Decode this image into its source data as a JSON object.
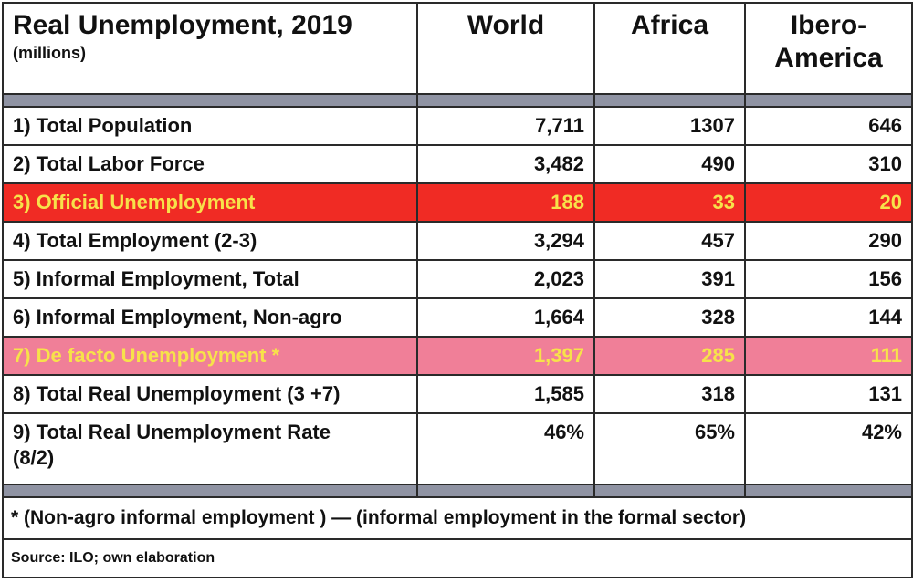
{
  "title": "Real Unemployment, 2019",
  "subtitle": "(millions)",
  "columns": [
    "World",
    "Africa",
    "Ibero-\nAmerica"
  ],
  "rows": [
    {
      "label": "1) Total Population",
      "world": "7,711",
      "africa": "1307",
      "ibero": "646",
      "highlight": "none"
    },
    {
      "label": "2) Total Labor Force",
      "world": "3,482",
      "africa": "490",
      "ibero": "310",
      "highlight": "none"
    },
    {
      "label": "3) Official Unemployment",
      "world": "188",
      "africa": "33",
      "ibero": "20",
      "highlight": "red"
    },
    {
      "label": "4) Total Employment (2-3)",
      "world": "3,294",
      "africa": "457",
      "ibero": "290",
      "highlight": "none"
    },
    {
      "label": "5) Informal Employment, Total",
      "world": "2,023",
      "africa": "391",
      "ibero": "156",
      "highlight": "none"
    },
    {
      "label": "6) Informal Employment, Non-agro",
      "world": "1,664",
      "africa": "328",
      "ibero": "144",
      "highlight": "none"
    },
    {
      "label": "7) De facto Unemployment *",
      "world": "1,397",
      "africa": "285",
      "ibero": "111",
      "highlight": "pink"
    },
    {
      "label": "8) Total Real Unemployment (3 +7)",
      "world": "1,585",
      "africa": "318",
      "ibero": "131",
      "highlight": "none"
    },
    {
      "label": "9) Total Real Unemployment Rate\n(8/2)",
      "world": "46%",
      "africa": "65%",
      "ibero": "42%",
      "highlight": "none"
    }
  ],
  "footnote": "* (Non-agro informal employment ) — (informal employment in the formal sector)",
  "source": "Source: ILO; own elaboration",
  "colors": {
    "red_row": "#f02b24",
    "pink_row": "#f07f98",
    "highlight_text": "#f7e24a",
    "spacer": "#8f93a3"
  }
}
